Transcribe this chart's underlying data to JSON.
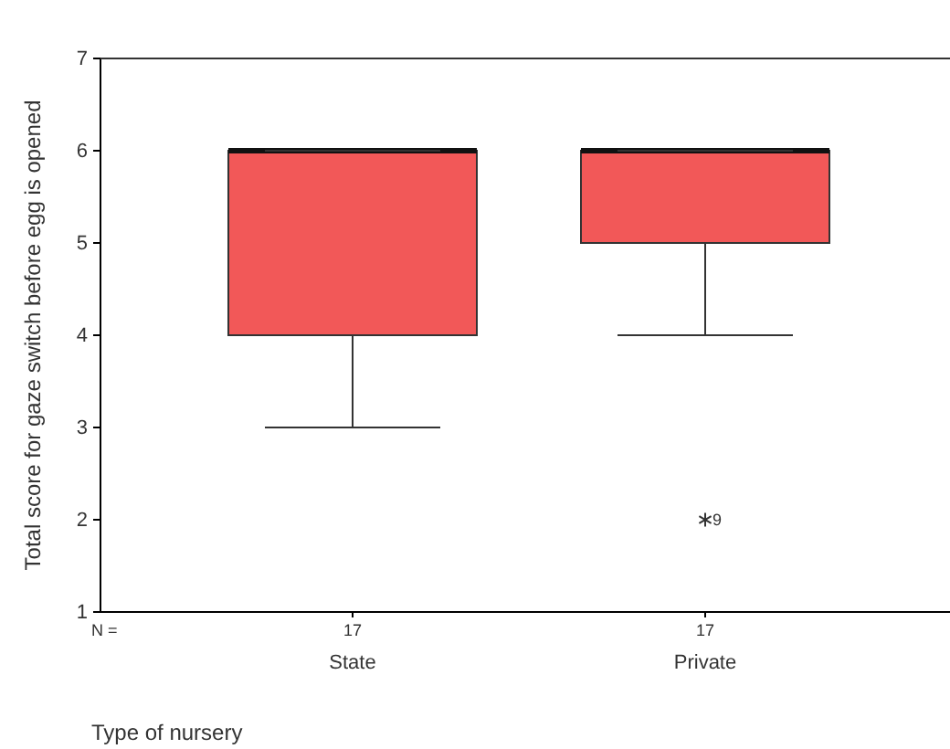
{
  "chart_data": {
    "type": "box",
    "xlabel": "Type of nursery",
    "ylabel": "Total score for gaze switch before egg is opened",
    "categories": [
      "State",
      "Private"
    ],
    "boxes": [
      {
        "low": 3,
        "q1": 4,
        "median": 6,
        "q3": 6,
        "high": 6
      },
      {
        "low": 4,
        "q1": 5,
        "median": 6,
        "q3": 6,
        "high": 6,
        "outliers": [
          2
        ]
      }
    ],
    "color": "#f25858",
    "ylim": [
      1,
      7
    ],
    "yticks": [
      1,
      2,
      3,
      4,
      5,
      6,
      7
    ],
    "grid": false,
    "annotations": [
      "N =",
      "17",
      "17",
      "9"
    ]
  }
}
